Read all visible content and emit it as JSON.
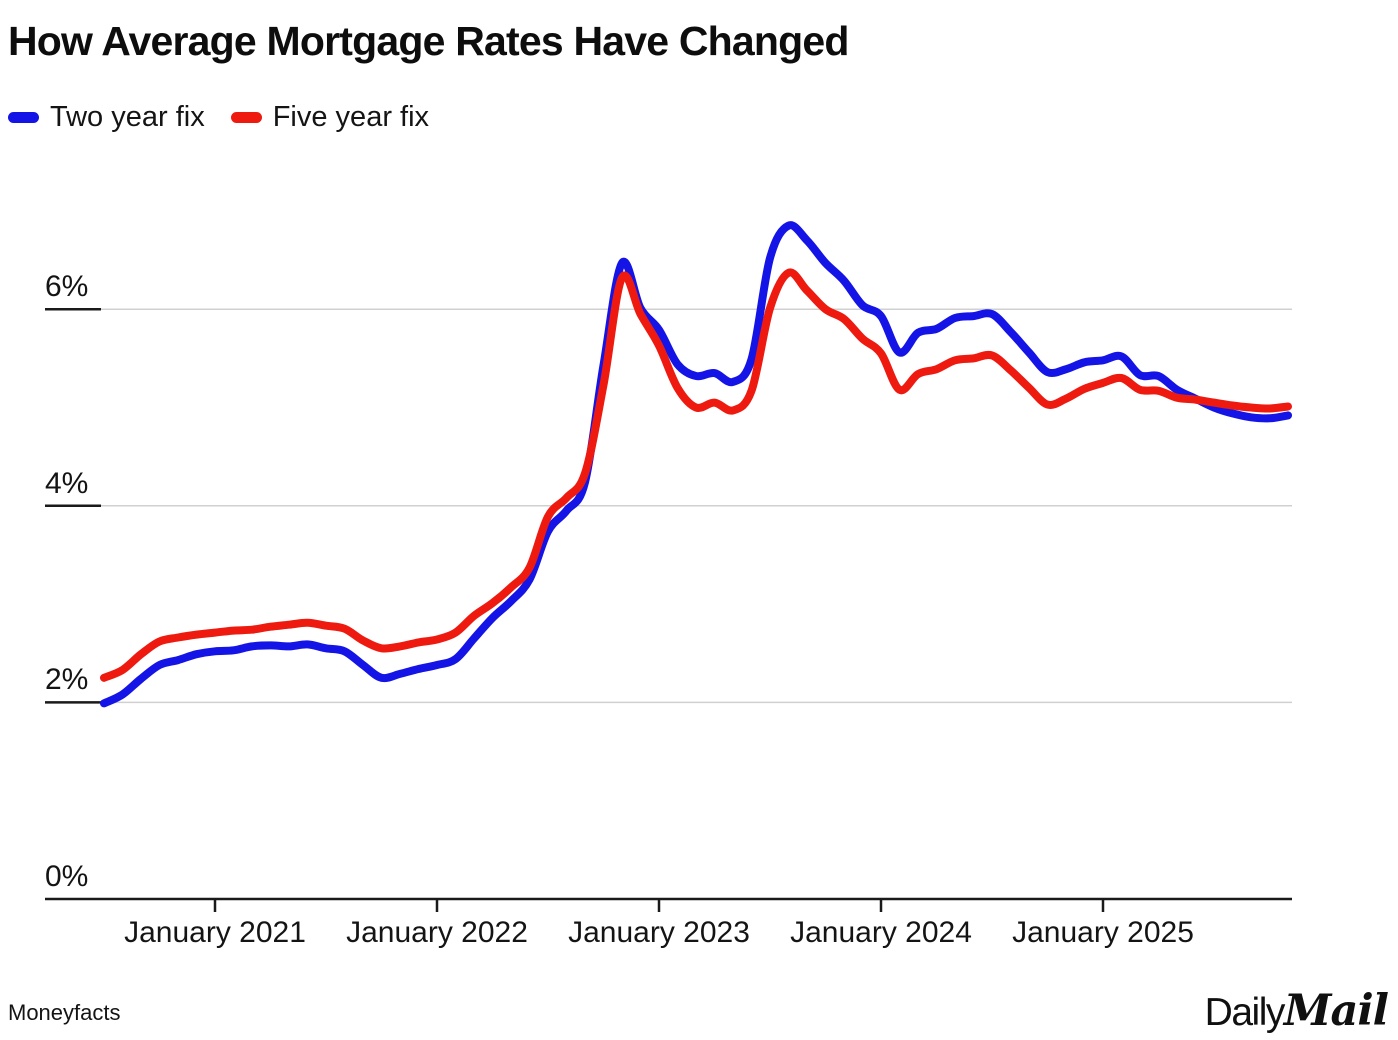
{
  "title": "How Average Mortgage Rates Have Changed",
  "source": "Moneyfacts",
  "logo": {
    "daily": "Daily",
    "mail": "Mail"
  },
  "colors": {
    "two_year": "#1414e6",
    "five_year": "#ee1a10",
    "gridline": "#d0d0d0",
    "axis": "#1a1a1a",
    "text": "#141414"
  },
  "legend": [
    {
      "label": "Two year fix",
      "color": "#1414e6"
    },
    {
      "label": "Five year fix",
      "color": "#ee1a10"
    }
  ],
  "chart_data": {
    "type": "line",
    "title": "How Average Mortgage Rates Have Changed",
    "xlabel": "",
    "ylabel": "",
    "y_unit": "%",
    "ylim": [
      0,
      7.1
    ],
    "grid": "horizontal",
    "legend_position": "top-left",
    "x": [
      "Jul 2020",
      "Aug 2020",
      "Sep 2020",
      "Oct 2020",
      "Nov 2020",
      "Dec 2020",
      "Jan 2021",
      "Feb 2021",
      "Mar 2021",
      "Apr 2021",
      "May 2021",
      "Jun 2021",
      "Jul 2021",
      "Aug 2021",
      "Sep 2021",
      "Oct 2021",
      "Nov 2021",
      "Dec 2021",
      "Jan 2022",
      "Feb 2022",
      "Mar 2022",
      "Apr 2022",
      "May 2022",
      "Jun 2022",
      "Jul 2022",
      "Aug 2022",
      "Sep 2022",
      "Oct 2022",
      "Nov 2022",
      "Dec 2022",
      "Jan 2023",
      "Feb 2023",
      "Mar 2023",
      "Apr 2023",
      "May 2023",
      "Jun 2023",
      "Jul 2023",
      "Aug 2023",
      "Sep 2023",
      "Oct 2023",
      "Nov 2023",
      "Dec 2023",
      "Jan 2024",
      "Feb 2024",
      "Mar 2024",
      "Apr 2024",
      "May 2024",
      "Jun 2024",
      "Jul 2024",
      "Aug 2024",
      "Sep 2024",
      "Oct 2024",
      "Nov 2024",
      "Dec 2024",
      "Jan 2025",
      "Feb 2025",
      "Mar 2025",
      "Apr 2025",
      "May 2025",
      "Jun 2025",
      "Jul 2025",
      "Aug 2025",
      "Sep 2025",
      "Oct 2025",
      "Nov 2025"
    ],
    "series": [
      {
        "name": "Two year fix",
        "color": "#1414e6",
        "values": [
          1.99,
          2.08,
          2.24,
          2.38,
          2.43,
          2.49,
          2.52,
          2.53,
          2.57,
          2.58,
          2.57,
          2.59,
          2.55,
          2.52,
          2.38,
          2.25,
          2.29,
          2.34,
          2.38,
          2.44,
          2.65,
          2.86,
          3.03,
          3.25,
          3.74,
          3.95,
          4.24,
          5.43,
          6.47,
          6.01,
          5.79,
          5.44,
          5.32,
          5.35,
          5.26,
          5.49,
          6.52,
          6.85,
          6.7,
          6.47,
          6.29,
          6.04,
          5.93,
          5.56,
          5.76,
          5.8,
          5.91,
          5.93,
          5.95,
          5.77,
          5.56,
          5.36,
          5.39,
          5.46,
          5.48,
          5.52,
          5.33,
          5.32,
          5.18,
          5.09,
          5.0,
          4.94,
          4.9,
          4.89,
          4.92
        ]
      },
      {
        "name": "Five year fix",
        "color": "#ee1a10",
        "values": [
          2.25,
          2.33,
          2.49,
          2.62,
          2.66,
          2.69,
          2.71,
          2.73,
          2.74,
          2.77,
          2.79,
          2.81,
          2.78,
          2.75,
          2.63,
          2.55,
          2.57,
          2.61,
          2.64,
          2.71,
          2.88,
          3.01,
          3.17,
          3.37,
          3.89,
          4.08,
          4.33,
          5.23,
          6.32,
          5.95,
          5.63,
          5.2,
          5.0,
          5.05,
          4.97,
          5.17,
          6.01,
          6.37,
          6.19,
          6.0,
          5.9,
          5.7,
          5.55,
          5.18,
          5.34,
          5.39,
          5.48,
          5.5,
          5.53,
          5.38,
          5.2,
          5.03,
          5.09,
          5.19,
          5.25,
          5.3,
          5.18,
          5.17,
          5.1,
          5.08,
          5.05,
          5.02,
          5.0,
          4.99,
          5.01
        ]
      }
    ],
    "y_ticks": [
      {
        "label": "0%",
        "value": 0
      },
      {
        "label": "2%",
        "value": 2
      },
      {
        "label": "4%",
        "value": 4
      },
      {
        "label": "6%",
        "value": 6
      }
    ],
    "x_ticks": [
      {
        "label": "January 2021",
        "month_index": 6
      },
      {
        "label": "January 2022",
        "month_index": 18
      },
      {
        "label": "January 2023",
        "month_index": 30
      },
      {
        "label": "January 2024",
        "month_index": 42
      },
      {
        "label": "January 2025",
        "month_index": 54
      }
    ]
  }
}
